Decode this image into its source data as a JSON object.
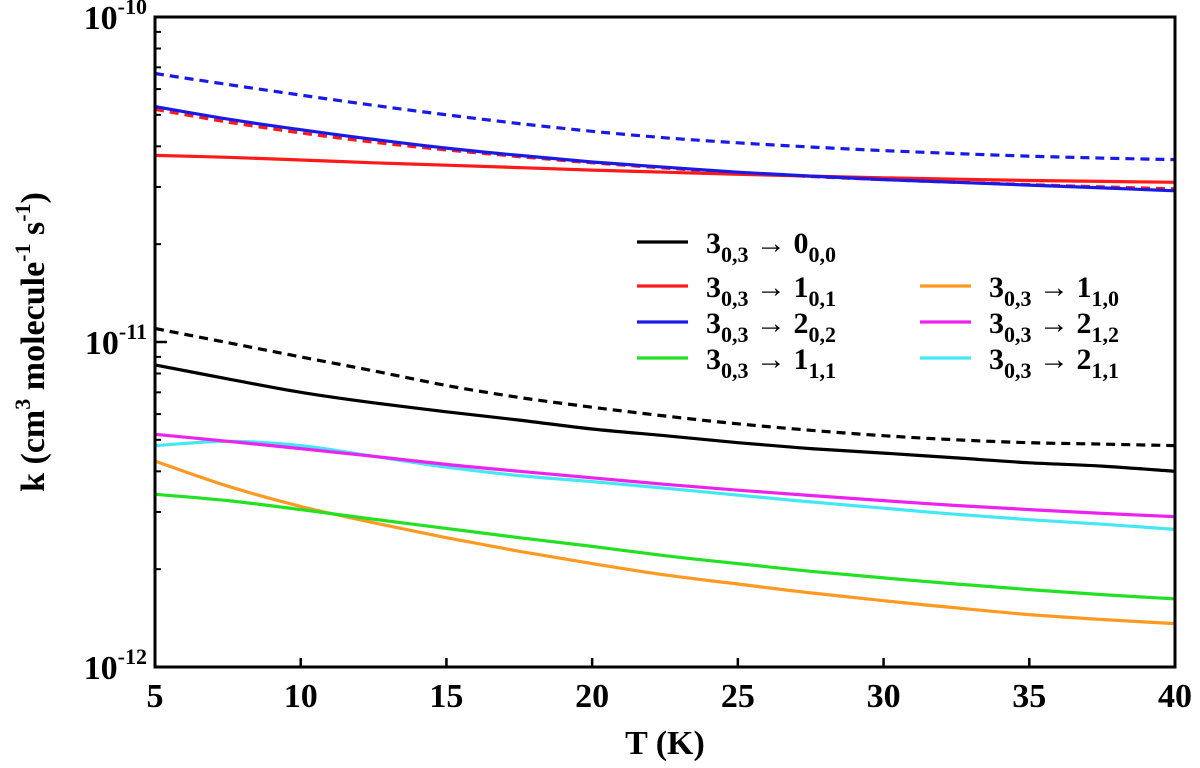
{
  "chart_data": {
    "type": "line",
    "title": "",
    "xlabel": "T (K)",
    "ylabel": "k (cm3 molecule-1 s-1)",
    "ylabel_parts": {
      "main": "k (cm",
      "sup1": "3",
      "mid": " molecule",
      "sup2": "-1",
      "mid2": " s",
      "sup3": "-1",
      "end": ")"
    },
    "xscale": "linear",
    "yscale": "log",
    "xlim": [
      5,
      40
    ],
    "ylim": [
      1e-12,
      1e-10
    ],
    "xticks": [
      5,
      10,
      15,
      20,
      25,
      30,
      35,
      40
    ],
    "yticks": [
      {
        "value": 1e-12,
        "base": "10",
        "exp": "-12"
      },
      {
        "value": 1e-11,
        "base": "10",
        "exp": "-11"
      },
      {
        "value": 1e-10,
        "base": "10",
        "exp": "-10"
      }
    ],
    "grid": false,
    "legend_position": "upper-right",
    "x": [
      5,
      7.5,
      10,
      12.5,
      15,
      17.5,
      20,
      22.5,
      25,
      27.5,
      30,
      32.5,
      35,
      37.5,
      40
    ],
    "series": [
      {
        "name": "3_{0,3} → 0_{0,0}",
        "legend": {
          "a": "3",
          "a_sub": "0,3",
          "arrow": " → ",
          "b": "0",
          "b_sub": "0,0"
        },
        "color": "#000000",
        "dash": "solid",
        "values": [
          8.5e-12,
          7.7e-12,
          7e-12,
          6.5e-12,
          6.1e-12,
          5.75e-12,
          5.4e-12,
          5.15e-12,
          4.9e-12,
          4.7e-12,
          4.55e-12,
          4.4e-12,
          4.25e-12,
          4.15e-12,
          4e-12
        ]
      },
      {
        "name": "3_{0,3} → 1_{0,1}",
        "legend": {
          "a": "3",
          "a_sub": "0,3",
          "arrow": " → ",
          "b": "1",
          "b_sub": "0,1"
        },
        "color": "#ff1a1a",
        "dash": "solid",
        "values": [
          3.75e-11,
          3.7e-11,
          3.63e-11,
          3.56e-11,
          3.5e-11,
          3.44e-11,
          3.38e-11,
          3.33e-11,
          3.28e-11,
          3.24e-11,
          3.2e-11,
          3.17e-11,
          3.14e-11,
          3.12e-11,
          3.1e-11
        ]
      },
      {
        "name": "3_{0,3} → 2_{0,2}",
        "legend": {
          "a": "3",
          "a_sub": "0,3",
          "arrow": " → ",
          "b": "2",
          "b_sub": "0,2"
        },
        "color": "#1a1ae6",
        "dash": "solid",
        "values": [
          5.3e-11,
          4.85e-11,
          4.5e-11,
          4.2e-11,
          3.95e-11,
          3.75e-11,
          3.58e-11,
          3.45e-11,
          3.33e-11,
          3.24e-11,
          3.16e-11,
          3.1e-11,
          3.04e-11,
          2.98e-11,
          2.92e-11
        ]
      },
      {
        "name": "3_{0,3} → 1_{1,1}",
        "legend": {
          "a": "3",
          "a_sub": "0,3",
          "arrow": " → ",
          "b": "1",
          "b_sub": "1,1"
        },
        "color": "#22e022",
        "dash": "solid",
        "values": [
          3.4e-12,
          3.25e-12,
          3.05e-12,
          2.85e-12,
          2.67e-12,
          2.5e-12,
          2.35e-12,
          2.2e-12,
          2.08e-12,
          1.97e-12,
          1.88e-12,
          1.8e-12,
          1.73e-12,
          1.67e-12,
          1.62e-12
        ]
      },
      {
        "name": "3_{0,3} → 1_{1,0}",
        "legend": {
          "a": "3",
          "a_sub": "0,3",
          "arrow": " → ",
          "b": "1",
          "b_sub": "1,0"
        },
        "color": "#ff9922",
        "dash": "solid",
        "values": [
          4.3e-12,
          3.6e-12,
          3.12e-12,
          2.78e-12,
          2.5e-12,
          2.27e-12,
          2.08e-12,
          1.92e-12,
          1.8e-12,
          1.69e-12,
          1.6e-12,
          1.52e-12,
          1.45e-12,
          1.4e-12,
          1.36e-12
        ]
      },
      {
        "name": "3_{0,3} → 2_{1,2}",
        "legend": {
          "a": "3",
          "a_sub": "0,3",
          "arrow": " → ",
          "b": "2",
          "b_sub": "1,2"
        },
        "color": "#ee22ee",
        "dash": "solid",
        "values": [
          5.2e-12,
          4.95e-12,
          4.7e-12,
          4.45e-12,
          4.2e-12,
          4e-12,
          3.82e-12,
          3.65e-12,
          3.5e-12,
          3.37e-12,
          3.25e-12,
          3.14e-12,
          3.05e-12,
          2.97e-12,
          2.9e-12
        ]
      },
      {
        "name": "3_{0,3} → 2_{1,1}",
        "legend": {
          "a": "3",
          "a_sub": "0,3",
          "arrow": " → ",
          "b": "2",
          "b_sub": "1,1"
        },
        "color": "#44e8f4",
        "dash": "solid",
        "values": [
          4.8e-12,
          4.95e-12,
          4.8e-12,
          4.45e-12,
          4.12e-12,
          3.88e-12,
          3.72e-12,
          3.55e-12,
          3.38e-12,
          3.22e-12,
          3.08e-12,
          2.95e-12,
          2.84e-12,
          2.75e-12,
          2.65e-12
        ]
      },
      {
        "name": "3_{0,3} → 0_{0,0} (dashed)",
        "color": "#000000",
        "dash": "dashed",
        "values": [
          1.1e-11,
          9.95e-12,
          9e-12,
          8.15e-12,
          7.35e-12,
          6.75e-12,
          6.3e-12,
          5.92e-12,
          5.6e-12,
          5.35e-12,
          5.15e-12,
          5e-12,
          4.9e-12,
          4.85e-12,
          4.8e-12
        ]
      },
      {
        "name": "3_{0,3} → 1_{0,1} (dashed)",
        "color": "#ff1a1a",
        "dash": "dashed",
        "values": [
          5.2e-11,
          4.75e-11,
          4.4e-11,
          4.12e-11,
          3.9e-11,
          3.72e-11,
          3.56e-11,
          3.43e-11,
          3.32e-11,
          3.23e-11,
          3.16e-11,
          3.1e-11,
          3.05e-11,
          3e-11,
          2.96e-11
        ]
      },
      {
        "name": "3_{0,3} → 2_{0,2} (dashed)",
        "color": "#1a1ae6",
        "dash": "dashed",
        "values": [
          6.7e-11,
          6.2e-11,
          5.75e-11,
          5.35e-11,
          5e-11,
          4.7e-11,
          4.45e-11,
          4.25e-11,
          4.1e-11,
          3.98e-11,
          3.88e-11,
          3.8e-11,
          3.73e-11,
          3.68e-11,
          3.64e-11
        ]
      }
    ]
  }
}
